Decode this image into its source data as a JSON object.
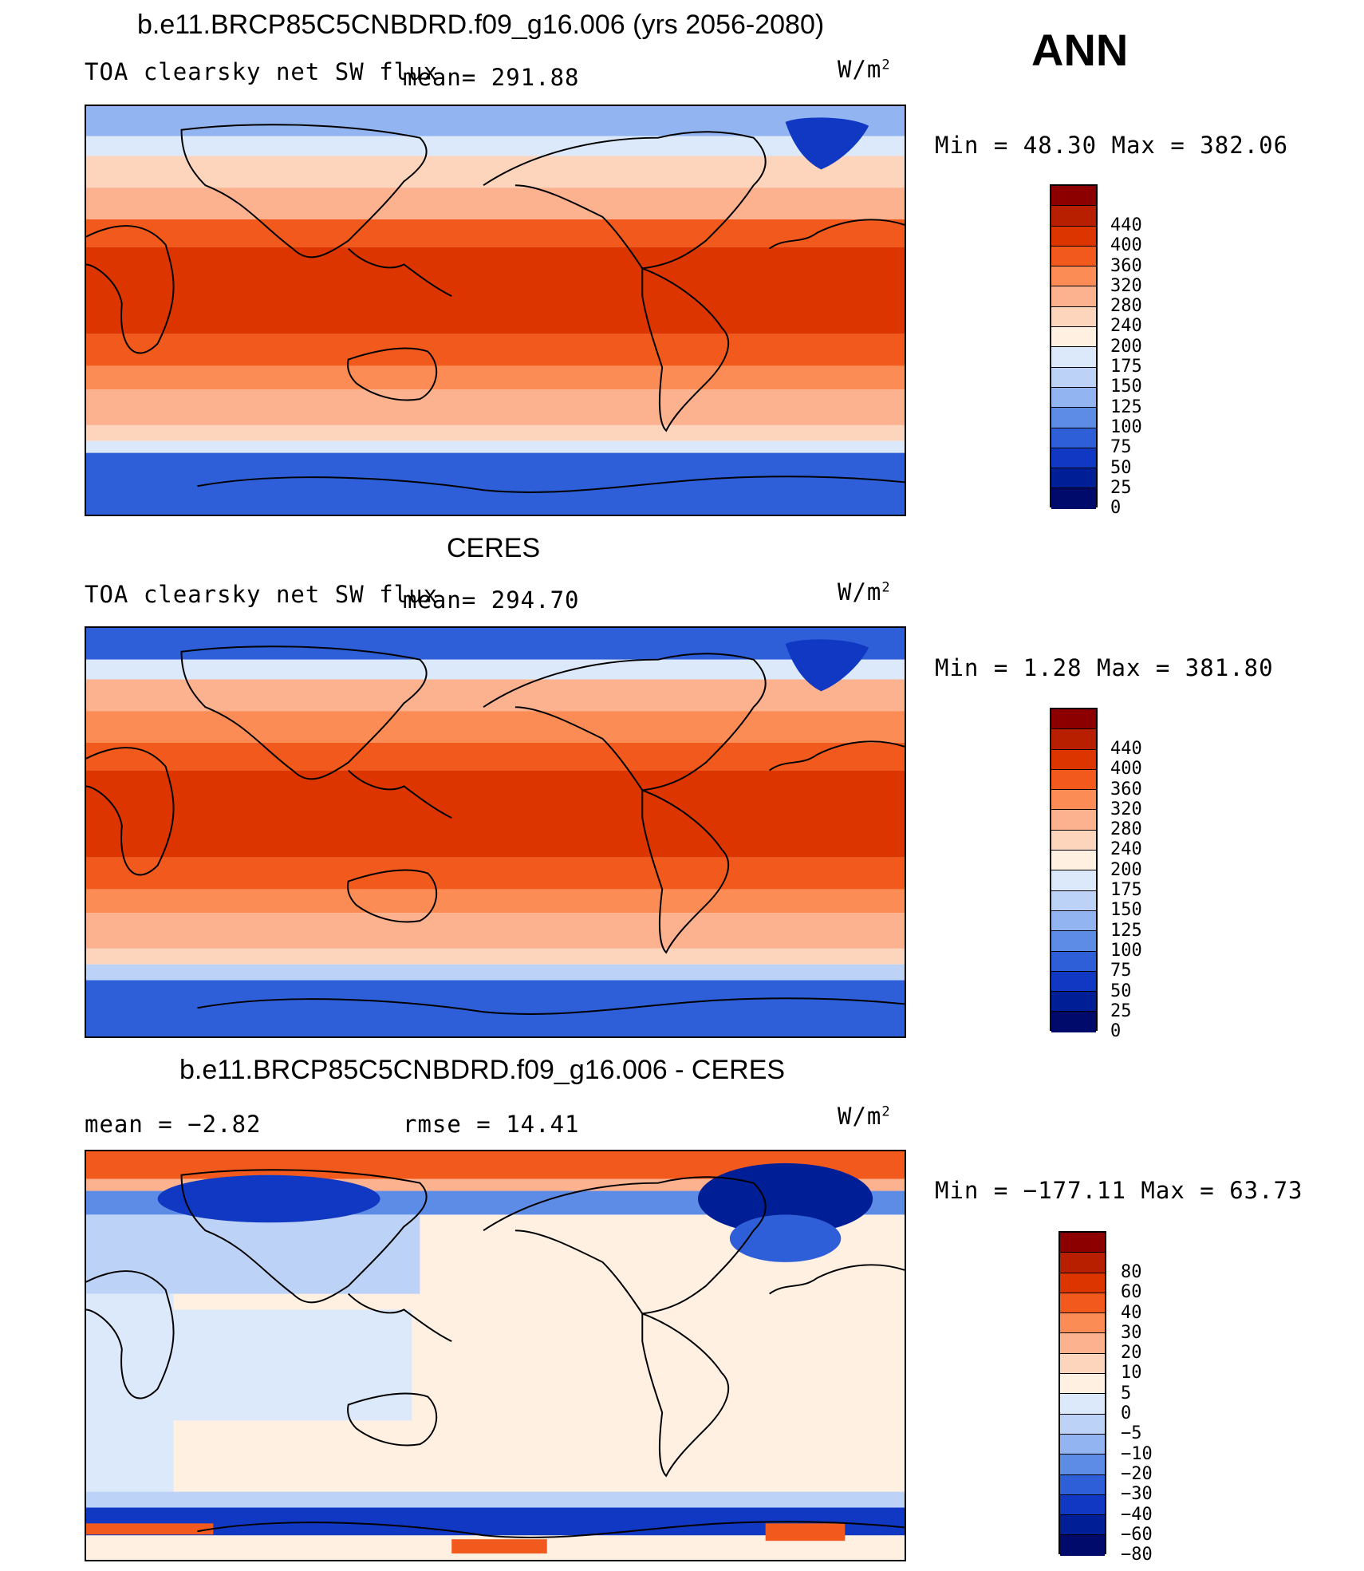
{
  "season": "ANN",
  "panels": [
    {
      "title": "b.e11.BRCP85C5CNBDRD.f09_g16.006 (yrs 2056-2080)",
      "left_label": "TOA clearsky net SW flux",
      "mean_label": "mean= 291.88",
      "units": "W/m",
      "units_sup": "2",
      "minmax": "Min =   48.30 Max = 382.06",
      "levels": [
        "440",
        "400",
        "360",
        "320",
        "280",
        "240",
        "200",
        "175",
        "150",
        "125",
        "100",
        "75",
        "50",
        "25",
        "0"
      ],
      "colors": [
        "#8c0000",
        "#b81e00",
        "#dc3500",
        "#f25a1d",
        "#fb8c55",
        "#fcb18f",
        "#fdd4bc",
        "#fff0e2",
        "#dbe9fb",
        "#bcd2f7",
        "#92b4f0",
        "#5d8ce6",
        "#2e5fd9",
        "#1138c2",
        "#001f96",
        "#000a6a"
      ]
    },
    {
      "title": "CERES",
      "left_label": "TOA clearsky net SW flux",
      "mean_label": "mean= 294.70",
      "units": "W/m",
      "units_sup": "2",
      "minmax": "Min =    1.28 Max = 381.80",
      "levels": [
        "440",
        "400",
        "360",
        "320",
        "280",
        "240",
        "200",
        "175",
        "150",
        "125",
        "100",
        "75",
        "50",
        "25",
        "0"
      ],
      "colors": [
        "#8c0000",
        "#b81e00",
        "#dc3500",
        "#f25a1d",
        "#fb8c55",
        "#fcb18f",
        "#fdd4bc",
        "#fff0e2",
        "#dbe9fb",
        "#bcd2f7",
        "#92b4f0",
        "#5d8ce6",
        "#2e5fd9",
        "#1138c2",
        "#001f96",
        "#000a6a"
      ]
    },
    {
      "title": "b.e11.BRCP85C5CNBDRD.f09_g16.006 - CERES",
      "left_label": "mean =   −2.82",
      "mean_label": "rmse =   14.41",
      "units": "W/m",
      "units_sup": "2",
      "minmax": "Min = −177.11 Max =   63.73",
      "levels": [
        "80",
        "60",
        "40",
        "30",
        "20",
        "10",
        "5",
        "0",
        "−5",
        "−10",
        "−20",
        "−30",
        "−40",
        "−60",
        "−80"
      ],
      "colors": [
        "#8c0000",
        "#b81e00",
        "#dc3500",
        "#f25a1d",
        "#fb8c55",
        "#fcb18f",
        "#fdd4bc",
        "#fff0e2",
        "#dbe9fb",
        "#bcd2f7",
        "#92b4f0",
        "#5d8ce6",
        "#2e5fd9",
        "#1138c2",
        "#001f96",
        "#000a6a"
      ]
    }
  ]
}
